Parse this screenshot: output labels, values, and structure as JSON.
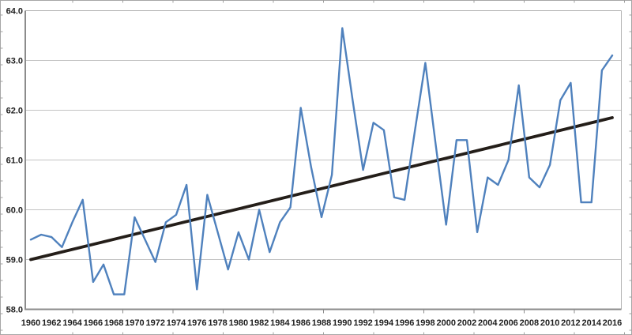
{
  "chart_data": {
    "type": "line",
    "title": "",
    "xlabel": "",
    "ylabel": "",
    "grid": true,
    "legend": false,
    "ylim": [
      58.0,
      64.0
    ],
    "x": [
      1960,
      1961,
      1962,
      1963,
      1964,
      1965,
      1966,
      1967,
      1968,
      1969,
      1970,
      1971,
      1972,
      1973,
      1974,
      1975,
      1976,
      1977,
      1978,
      1979,
      1980,
      1981,
      1982,
      1983,
      1984,
      1985,
      1986,
      1987,
      1988,
      1989,
      1990,
      1991,
      1992,
      1993,
      1994,
      1995,
      1996,
      1997,
      1998,
      1999,
      2000,
      2001,
      2002,
      2003,
      2004,
      2005,
      2006,
      2007,
      2008,
      2009,
      2010,
      2011,
      2012,
      2013,
      2014,
      2015,
      2016
    ],
    "values": [
      59.4,
      59.5,
      59.45,
      59.25,
      59.75,
      60.2,
      58.55,
      58.9,
      58.3,
      58.3,
      59.85,
      59.4,
      58.95,
      59.75,
      59.9,
      60.5,
      58.4,
      60.3,
      59.55,
      58.8,
      59.55,
      59.0,
      60.0,
      59.15,
      59.75,
      60.05,
      62.05,
      60.85,
      59.85,
      60.7,
      63.65,
      62.2,
      60.8,
      61.75,
      61.6,
      60.25,
      60.2,
      61.6,
      62.95,
      61.3,
      59.7,
      61.4,
      61.4,
      59.55,
      60.65,
      60.5,
      61.0,
      62.5,
      60.65,
      60.45,
      60.9,
      62.2,
      62.55,
      60.15,
      60.15,
      62.8,
      63.1
    ],
    "trendline": {
      "start_year": 1960,
      "start_value": 59.0,
      "end_year": 2016,
      "end_value": 61.85
    },
    "x_tick_labels": [
      "1960",
      "1962",
      "1964",
      "1966",
      "1968",
      "1970",
      "1972",
      "1974",
      "1976",
      "1978",
      "1980",
      "1982",
      "1984",
      "1986",
      "1988",
      "1990",
      "1992",
      "1994",
      "1996",
      "1998",
      "2000",
      "2002",
      "2004",
      "2006",
      "2008",
      "2010",
      "2012",
      "2014",
      "2016"
    ],
    "y_tick_labels": [
      "58.0",
      "59.0",
      "60.0",
      "61.0",
      "62.0",
      "63.0",
      "64.0"
    ],
    "colors": {
      "series": "#4f81bd",
      "trend": "#241e19",
      "gridline": "#c3c3c3",
      "plot_border": "#8c8c8c",
      "plot_border_light": "#b3b3b3",
      "axis_text": "#1f1f1f",
      "frame": "#a6a6a6",
      "background": "#ffffff"
    }
  }
}
